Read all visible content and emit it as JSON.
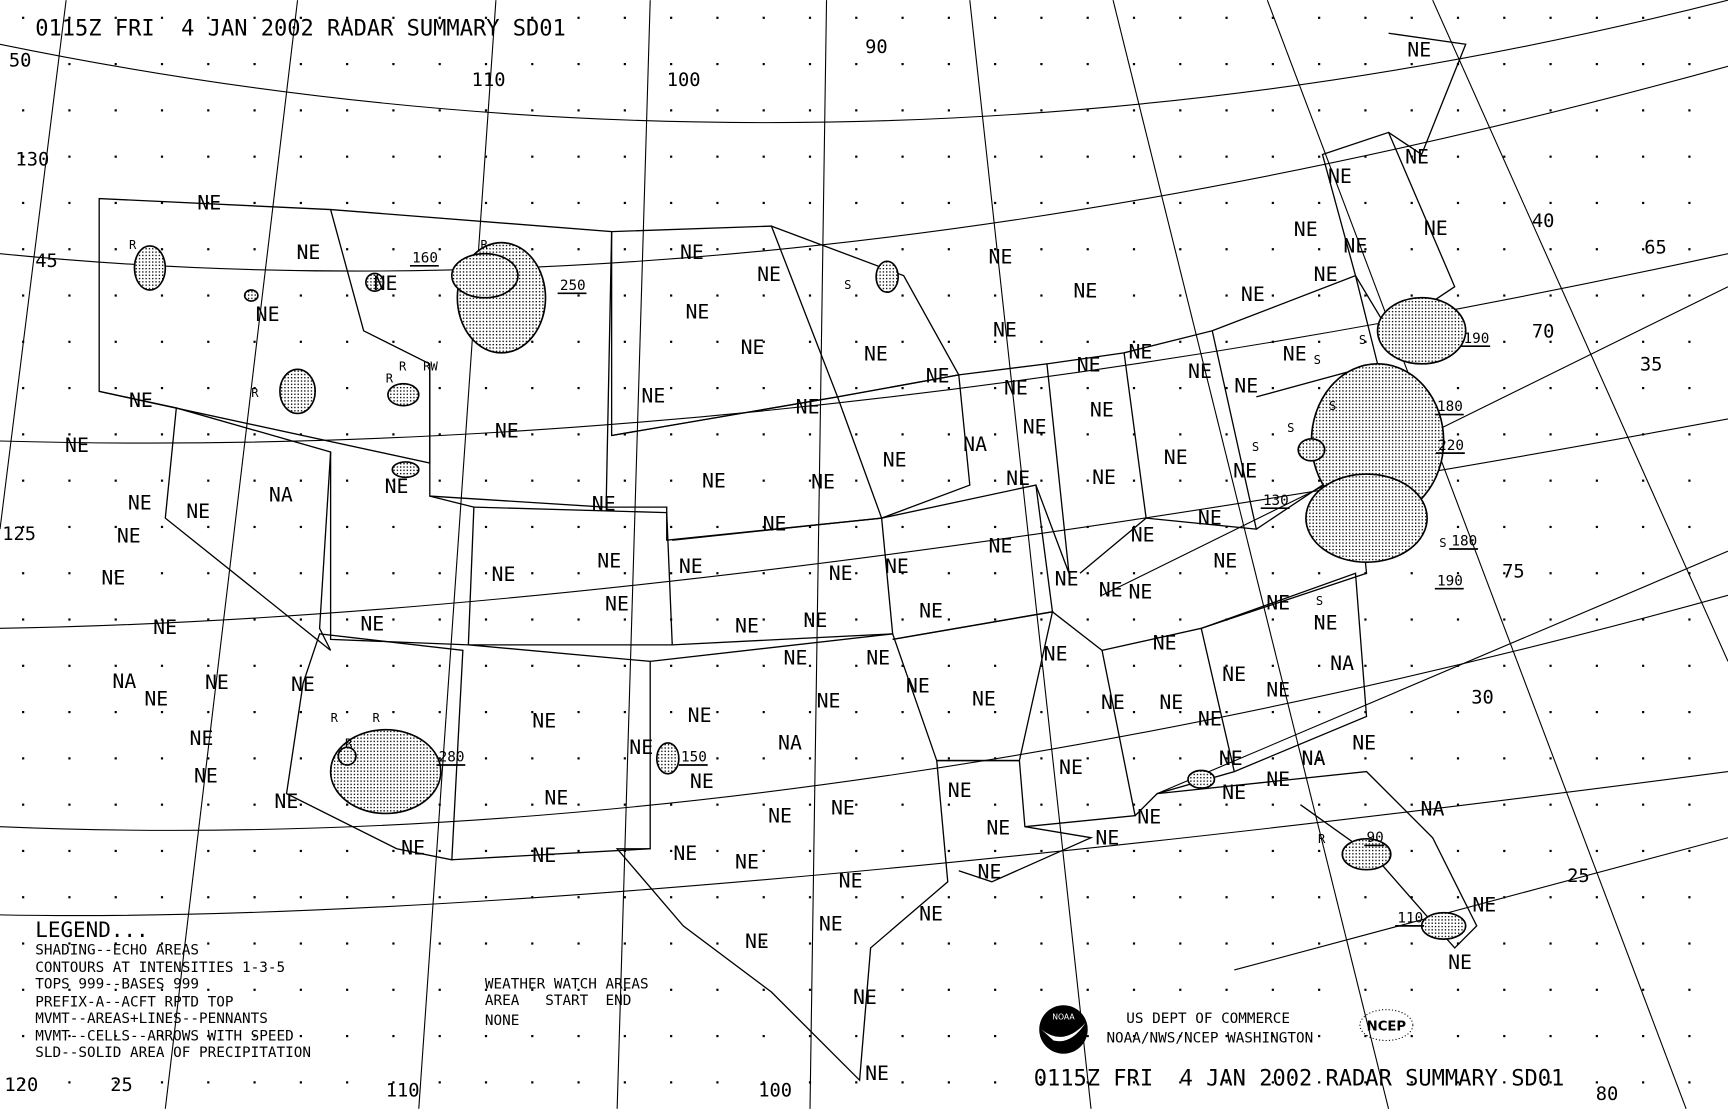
{
  "header": {
    "title": "0115Z FRI  4 JAN 2002 RADAR SUMMARY SD01"
  },
  "footer": {
    "title": "0115Z FRI  4 JAN 2002 RADAR SUMMARY SD01",
    "agency_line1": "US DEPT OF COMMERCE",
    "agency_line2": "NOAA/NWS/NCEP WASHINGTON",
    "noaa_logo": "NOAA",
    "ncep_logo": "NCEP"
  },
  "legend": {
    "title": "LEGEND...",
    "lines": [
      "SHADING--ECHO AREAS",
      "CONTOURS AT INTENSITIES 1-3-5",
      "TOPS 999--BASES 999",
      "PREFIX-A--ACFT RPTD TOP",
      "MVMT--AREAS+LINES--PENNANTS",
      "MVMT--CELLS--ARROWS WITH SPEED",
      "SLD--SOLID AREA OF PRECIPITATION"
    ]
  },
  "watch": {
    "title": "WEATHER WATCH AREAS",
    "columns": "AREA   START  END",
    "value": "NONE"
  },
  "grid_labels": [
    "50",
    "130",
    "45",
    "125",
    "120",
    "25",
    "110",
    "100",
    "90",
    "110",
    "100",
    "40",
    "65",
    "70",
    "35",
    "75",
    "30",
    "25",
    "80"
  ],
  "region_codes": [
    "NE",
    "NE",
    "NE",
    "NE",
    "NE",
    "NE",
    "NA",
    "NE",
    "NE",
    "NE",
    "NE",
    "NE",
    "NA",
    "NE",
    "NE",
    "NE",
    "NE",
    "NE",
    "NE",
    "NE",
    "NE",
    "NE",
    "NE",
    "NE",
    "NE",
    "NE",
    "NE",
    "NE",
    "NE",
    "NE",
    "NE",
    "NE",
    "NE",
    "NE",
    "NE",
    "NE",
    "NE",
    "NE",
    "NE",
    "NE",
    "NE",
    "NE",
    "NE",
    "NE",
    "NE",
    "NA",
    "NE",
    "NE",
    "NE",
    "NE",
    "NE",
    "NE",
    "NE",
    "NE",
    "NE",
    "NE",
    "NE",
    "NE",
    "NE",
    "NE",
    "NE",
    "NE",
    "NE",
    "NE",
    "NE",
    "NE",
    "NE",
    "NE",
    "NE",
    "NE",
    "NE",
    "NE",
    "NE",
    "NE",
    "NA",
    "NE",
    "NE",
    "NE",
    "NE",
    "NE",
    "NE",
    "NE",
    "NE",
    "NE",
    "NE",
    "NE",
    "NE",
    "NE",
    "NE",
    "NA",
    "NE",
    "NE",
    "NA",
    "NE",
    "NE",
    "NE",
    "NE",
    "NE",
    "NA",
    "NE",
    "NE",
    "NE",
    "NE",
    "NE",
    "NE",
    "NE",
    "NE",
    "NE",
    "NE",
    "NE",
    "NE",
    "NE",
    "NE",
    "NE",
    "NE",
    "NE",
    "NE",
    "NE",
    "NE",
    "NE",
    "NE",
    "NE"
  ],
  "echo_tops": [
    "160",
    "250",
    "190",
    "180",
    "220",
    "130",
    "180",
    "190",
    "280",
    "150",
    "90",
    "110"
  ],
  "cell_markers": [
    "R",
    "R",
    "R",
    "R",
    "R",
    "RW",
    "R",
    "R",
    "R",
    "R",
    "S",
    "S",
    "S",
    "S",
    "S",
    "S",
    "S",
    "S"
  ],
  "colors": {
    "background": "#ffffff",
    "ink": "#000000",
    "echo_shading": "#cfcfcf"
  }
}
